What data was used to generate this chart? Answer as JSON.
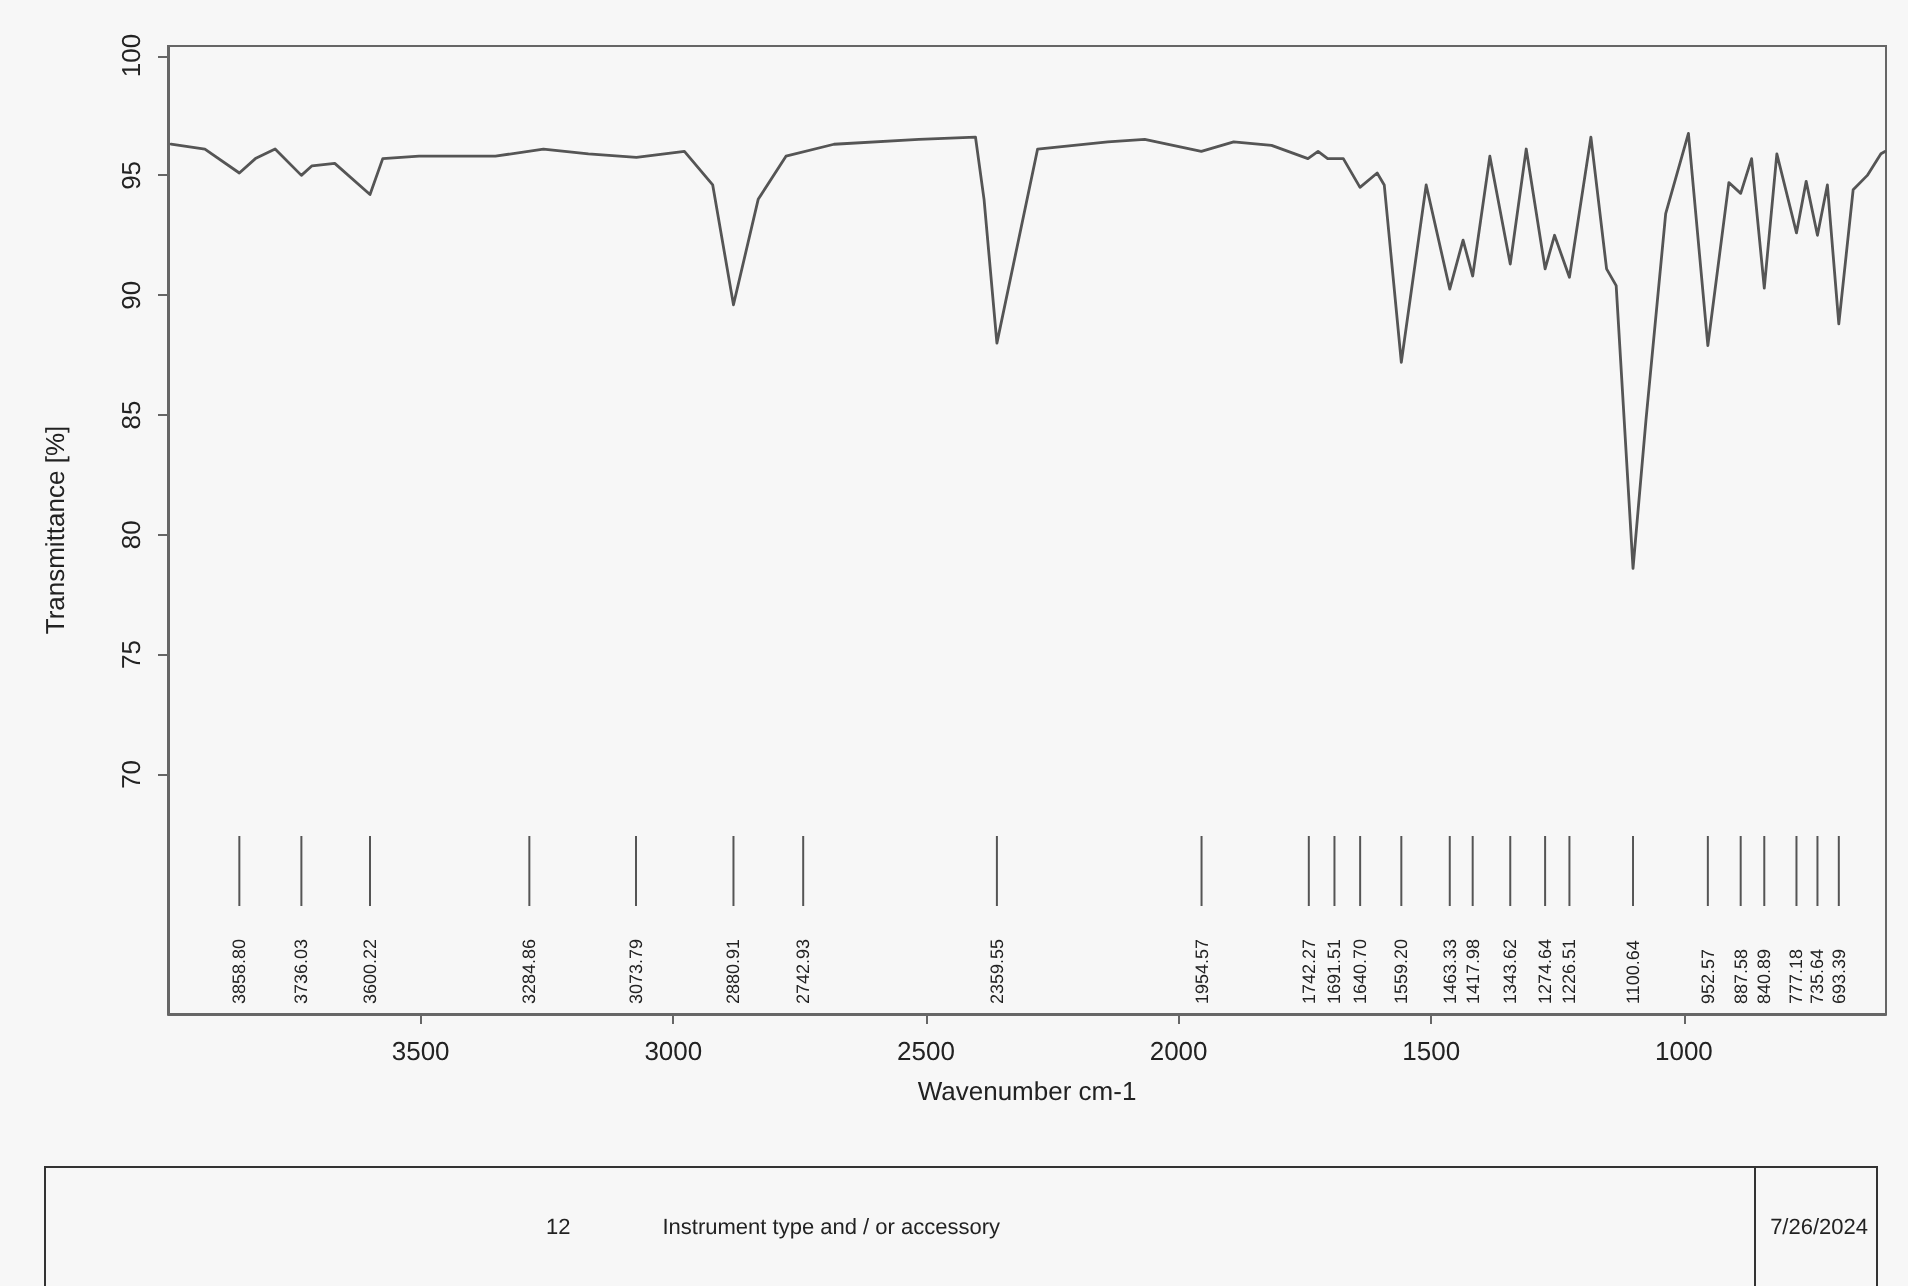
{
  "chart_data": {
    "type": "line",
    "xlabel": "Wavenumber cm-1",
    "ylabel": "Transmittance [%]",
    "xlim": [
      4000,
      600
    ],
    "xticks": [
      3500,
      3000,
      2500,
      2000,
      1500,
      1000
    ],
    "ylim": [
      60,
      100.4
    ],
    "yticks": [
      70,
      75,
      80,
      85,
      90,
      95,
      100
    ],
    "line_style": "solid",
    "x": [
      3994,
      3927,
      3858.8,
      3827,
      3788,
      3736.03,
      3715,
      3670,
      3600.22,
      3575,
      3503,
      3352,
      3257,
      3168,
      3073,
      2978,
      2922,
      2880.91,
      2832,
      2777,
      2682,
      2514,
      2402,
      2385,
      2359.55,
      2279,
      2140,
      2067,
      1955,
      1891,
      1816,
      1744,
      1724,
      1705,
      1674,
      1641,
      1607,
      1593,
      1559.2,
      1510,
      1463.33,
      1437,
      1417.98,
      1384,
      1343.62,
      1312,
      1274.64,
      1256,
      1226.51,
      1184,
      1153,
      1134,
      1100.64,
      1075,
      1036,
      991,
      952.57,
      911,
      887.58,
      866,
      840.89,
      816,
      777.18,
      758,
      735.64,
      716,
      693.39,
      665,
      637,
      610,
      602
    ],
    "series": [
      {
        "color": "#555555",
        "values": [
          96.3,
          96.1,
          95.1,
          95.7,
          96.1,
          95.0,
          95.4,
          95.5,
          94.2,
          95.7,
          95.8,
          95.8,
          96.1,
          95.9,
          95.75,
          96.0,
          94.6,
          89.6,
          94.0,
          95.8,
          96.3,
          96.5,
          96.6,
          94.0,
          88.0,
          96.1,
          96.4,
          96.5,
          96.0,
          96.4,
          96.25,
          95.7,
          96.0,
          95.7,
          95.7,
          94.5,
          95.1,
          94.6,
          87.2,
          94.6,
          90.25,
          92.3,
          90.8,
          95.8,
          91.3,
          96.1,
          91.1,
          92.5,
          90.75,
          96.6,
          91.1,
          90.4,
          78.6,
          84.8,
          93.4,
          96.75,
          87.9,
          94.7,
          94.25,
          95.7,
          90.3,
          95.9,
          92.6,
          94.75,
          92.5,
          94.6,
          88.8,
          94.4,
          95.0,
          95.9,
          96.0
        ]
      }
    ],
    "annotations": [
      "3858.80",
      "3736.03",
      "3600.22",
      "3284.86",
      "3073.79",
      "2880.91",
      "2742.93",
      "2359.55",
      "1954.57",
      "1742.27",
      "1691.51",
      "1640.70",
      "1559.20",
      "1463.33",
      "1417.98",
      "1343.62",
      "1274.64",
      "1226.51",
      "1100.64",
      "952.57",
      "887.58",
      "840.89",
      "777.18",
      "735.64",
      "693.39",
      "12",
      "Instrument type and / or accessory",
      "7/26/2024"
    ]
  }
}
